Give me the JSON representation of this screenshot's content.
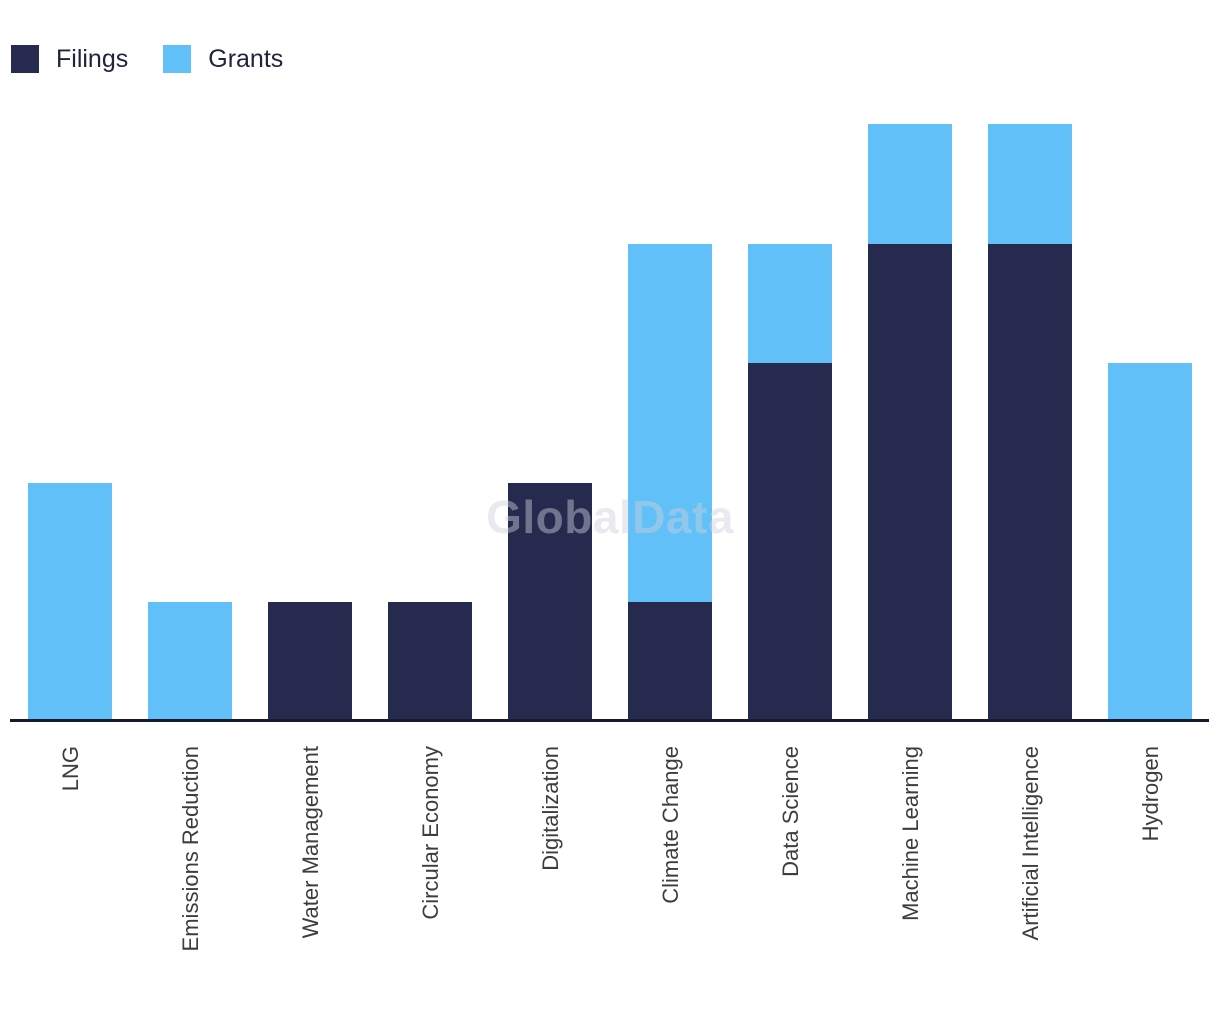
{
  "watermark": "GlobalData",
  "legend": {
    "items": [
      {
        "label": "Filings",
        "color": "#262a4e"
      },
      {
        "label": "Grants",
        "color": "#60c0f7"
      }
    ]
  },
  "chart_data": {
    "type": "bar",
    "stacked": true,
    "orientation": "vertical",
    "title": "",
    "xlabel": "",
    "ylabel": "",
    "categories": [
      "LNG",
      "Emissions Reduction",
      "Water Management",
      "Circular Economy",
      "Digitalization",
      "Climate Change",
      "Data Science",
      "Machine Learning",
      "Artificial Intelligence",
      "Hydrogen"
    ],
    "series": [
      {
        "name": "Filings",
        "color": "#262a4e",
        "values": [
          0,
          0,
          1,
          1,
          2,
          1,
          3,
          4,
          4,
          0
        ]
      },
      {
        "name": "Grants",
        "color": "#60c0f7",
        "values": [
          2,
          1,
          0,
          0,
          0,
          3,
          1,
          1,
          1,
          3
        ]
      }
    ],
    "totals": [
      2,
      1,
      1,
      1,
      2,
      4,
      4,
      5,
      5,
      3
    ],
    "ylim": [
      0,
      5
    ],
    "grid": false,
    "y_axis_visible": false,
    "legend_position": "top-left",
    "x_tick_rotation": -90
  },
  "colors": {
    "axis_line": "#161a2e",
    "tick_label": "#3d3d3d",
    "legend_text": "#20243c",
    "background": "#ffffff"
  }
}
